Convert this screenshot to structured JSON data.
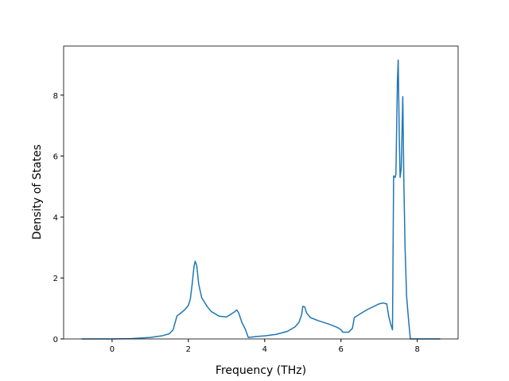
{
  "chart_data": {
    "type": "line",
    "x_label": "Frequency (THz)",
    "y_label": "Density of States",
    "x": [
      -0.8,
      0,
      0.5,
      1.0,
      1.3,
      1.5,
      1.6,
      1.7,
      1.8,
      1.9,
      2.0,
      2.05,
      2.1,
      2.15,
      2.18,
      2.22,
      2.27,
      2.35,
      2.5,
      2.6,
      2.8,
      3.0,
      3.1,
      3.2,
      3.27,
      3.32,
      3.4,
      3.5,
      3.57,
      3.8,
      4.0,
      4.3,
      4.6,
      4.8,
      4.9,
      4.97,
      5.0,
      5.05,
      5.1,
      5.2,
      5.4,
      5.7,
      5.9,
      6.0,
      6.05,
      6.2,
      6.3,
      6.35,
      6.5,
      6.7,
      7.0,
      7.1,
      7.2,
      7.25,
      7.3,
      7.35,
      7.38,
      7.42,
      7.44,
      7.48,
      7.5,
      7.53,
      7.55,
      7.58,
      7.62,
      7.65,
      7.68,
      7.72,
      7.78,
      7.82,
      8.6
    ],
    "series": [
      {
        "color": "#1f77b4",
        "values": [
          0,
          0,
          0.01,
          0.05,
          0.1,
          0.17,
          0.3,
          0.75,
          0.85,
          0.95,
          1.1,
          1.3,
          1.8,
          2.4,
          2.55,
          2.4,
          1.8,
          1.35,
          1.05,
          0.9,
          0.75,
          0.72,
          0.8,
          0.88,
          0.95,
          0.85,
          0.55,
          0.3,
          0.05,
          0.08,
          0.1,
          0.15,
          0.25,
          0.4,
          0.55,
          0.8,
          1.07,
          1.05,
          0.85,
          0.7,
          0.6,
          0.48,
          0.38,
          0.3,
          0.22,
          0.22,
          0.35,
          0.7,
          0.82,
          0.97,
          1.15,
          1.18,
          1.15,
          0.75,
          0.5,
          0.3,
          5.35,
          5.3,
          5.4,
          8.5,
          9.15,
          6.5,
          5.3,
          5.6,
          7.95,
          5.0,
          3.0,
          1.4,
          0.5,
          0,
          0
        ]
      }
    ],
    "xlim": [
      -1.27,
      9.07
    ],
    "ylim": [
      0,
      9.61
    ],
    "xticks": [
      0,
      2,
      4,
      6,
      8
    ],
    "yticks": [
      0,
      2,
      4,
      6,
      8
    ]
  }
}
